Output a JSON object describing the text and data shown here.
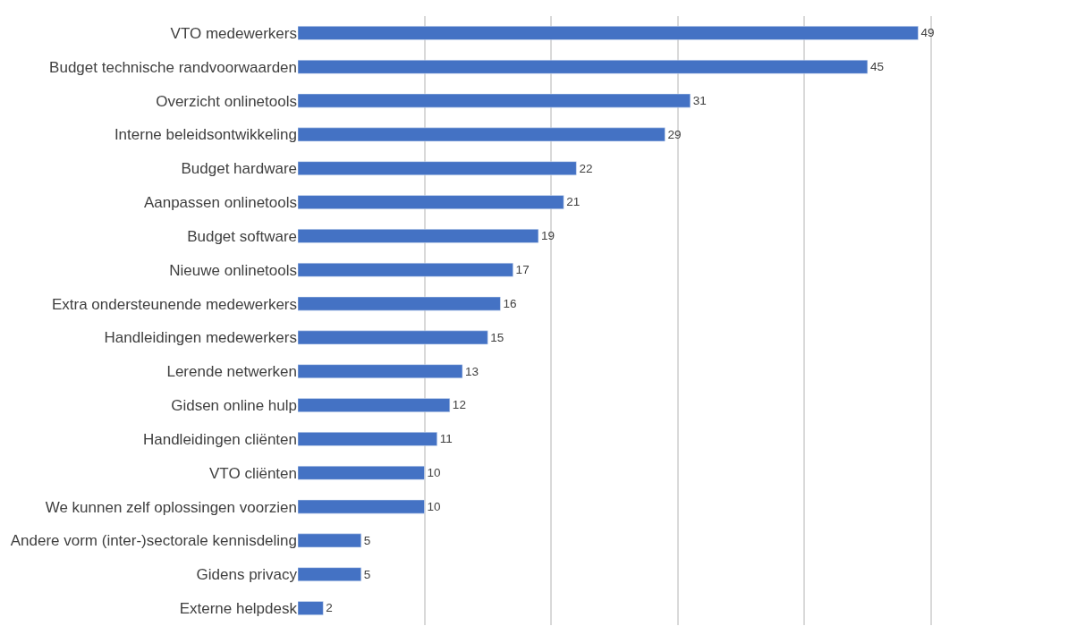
{
  "chart_data": {
    "type": "bar",
    "orientation": "horizontal",
    "categories": [
      "VTO medewerkers",
      "Budget technische randvoorwaarden",
      "Overzicht onlinetools",
      "Interne beleidsontwikkeling",
      "Budget hardware",
      "Aanpassen onlinetools",
      "Budget software",
      "Nieuwe onlinetools",
      "Extra ondersteunende medewerkers",
      "Handleidingen medewerkers",
      "Lerende netwerken",
      "Gidsen online hulp",
      "Handleidingen cliënten",
      "VTO cliënten",
      "We kunnen zelf oplossingen voorzien",
      "Andere vorm (inter-)sectorale kennisdeling",
      "Gidens privacy",
      "Externe helpdesk"
    ],
    "values": [
      49,
      45,
      31,
      29,
      22,
      21,
      19,
      17,
      16,
      15,
      13,
      12,
      11,
      10,
      10,
      5,
      5,
      2
    ],
    "color": "#4472c4",
    "tick_labels": "y",
    "grid": "x",
    "data_labels": true,
    "legend": false
  }
}
